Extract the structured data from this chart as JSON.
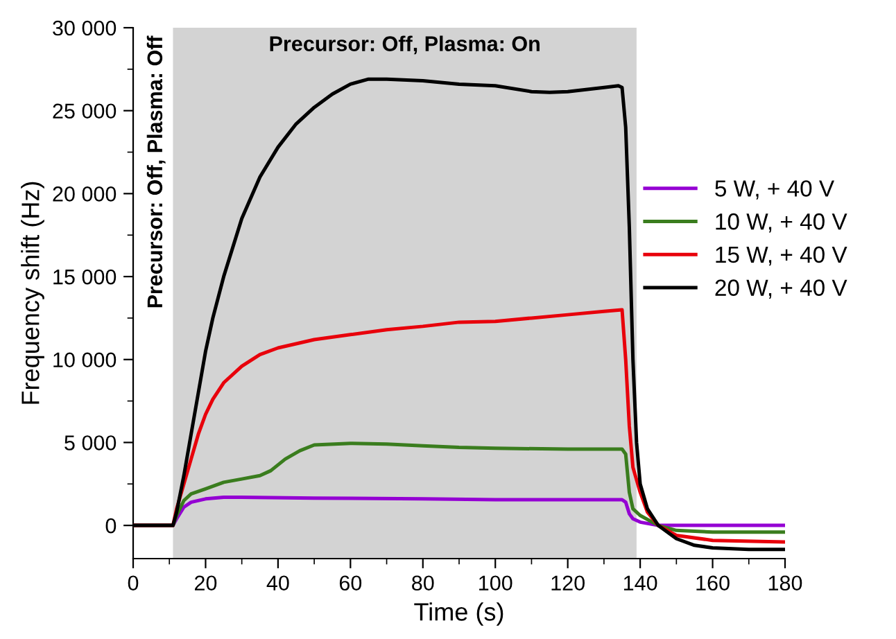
{
  "chart_data": {
    "type": "line",
    "xlabel": "Time (s)",
    "ylabel": "Frequency shift (Hz)",
    "xlim": [
      0,
      180
    ],
    "xticks": [
      0,
      20,
      40,
      60,
      80,
      100,
      120,
      140,
      160,
      180
    ],
    "ylim": [
      -2000,
      30000
    ],
    "yticks": [
      {
        "value": 0,
        "label": "0"
      },
      {
        "value": 5000,
        "label": "5 000"
      },
      {
        "value": 10000,
        "label": "10 000"
      },
      {
        "value": 15000,
        "label": "15 000"
      },
      {
        "value": 20000,
        "label": "20 000"
      },
      {
        "value": 25000,
        "label": "25 000"
      },
      {
        "value": 30000,
        "label": "30 000"
      }
    ],
    "grid": false,
    "legend": "right",
    "marker": "none",
    "line_style": "solid",
    "bands": [
      {
        "axis": "x",
        "from": 11,
        "to": 139,
        "label": "Precursor: Off, Plasma: On",
        "color": "#d3d3d3"
      }
    ],
    "annotations": [
      "Precursor: Off, Plasma: Off"
    ],
    "series": [
      {
        "name": "5 W, + 40 V",
        "color": "#9400d3",
        "x": [
          0,
          11,
          12,
          14,
          16,
          20,
          25,
          30,
          50,
          80,
          100,
          135,
          136,
          137,
          138,
          140,
          145,
          150,
          180
        ],
        "values": [
          0,
          0,
          400,
          1100,
          1400,
          1600,
          1700,
          1700,
          1650,
          1600,
          1550,
          1550,
          1400,
          700,
          400,
          200,
          0,
          0,
          0
        ]
      },
      {
        "name": "10 W, + 40 V",
        "color": "#3a7d1e",
        "x": [
          0,
          11,
          12,
          14,
          16,
          20,
          25,
          30,
          35,
          38,
          42,
          46,
          50,
          60,
          70,
          80,
          90,
          100,
          120,
          135,
          136,
          137,
          138,
          140,
          145,
          150,
          160,
          180
        ],
        "values": [
          0,
          0,
          600,
          1500,
          1900,
          2200,
          2600,
          2800,
          3000,
          3300,
          4000,
          4500,
          4850,
          4950,
          4900,
          4800,
          4700,
          4650,
          4600,
          4600,
          4300,
          2000,
          1000,
          600,
          0,
          -300,
          -400,
          -400
        ]
      },
      {
        "name": "15 W, + 40 V",
        "color": "#e8000b",
        "x": [
          0,
          11,
          12,
          14,
          16,
          18,
          20,
          22,
          25,
          30,
          35,
          40,
          50,
          60,
          70,
          80,
          90,
          100,
          110,
          120,
          130,
          135,
          136,
          137,
          138,
          140,
          142,
          145,
          150,
          160,
          180
        ],
        "values": [
          0,
          0,
          1000,
          2500,
          4000,
          5500,
          6700,
          7600,
          8600,
          9600,
          10300,
          10700,
          11200,
          11500,
          11800,
          12000,
          12250,
          12300,
          12500,
          12700,
          12900,
          13000,
          10000,
          6000,
          3500,
          2000,
          800,
          0,
          -600,
          -900,
          -1000
        ]
      },
      {
        "name": "20 W, + 40 V",
        "color": "#000000",
        "x": [
          0,
          11,
          12,
          14,
          16,
          18,
          20,
          22,
          25,
          30,
          35,
          40,
          45,
          50,
          55,
          60,
          65,
          70,
          80,
          90,
          100,
          110,
          115,
          120,
          130,
          134,
          135,
          136,
          137,
          138,
          139,
          140,
          142,
          145,
          150,
          155,
          160,
          170,
          180
        ],
        "values": [
          0,
          0,
          800,
          3000,
          5500,
          8000,
          10500,
          12500,
          15000,
          18500,
          21000,
          22800,
          24200,
          25200,
          26000,
          26600,
          26900,
          26900,
          26800,
          26600,
          26500,
          26150,
          26100,
          26150,
          26400,
          26500,
          26400,
          24000,
          18000,
          10000,
          5000,
          2500,
          1000,
          0,
          -800,
          -1200,
          -1350,
          -1450,
          -1450
        ]
      }
    ]
  }
}
